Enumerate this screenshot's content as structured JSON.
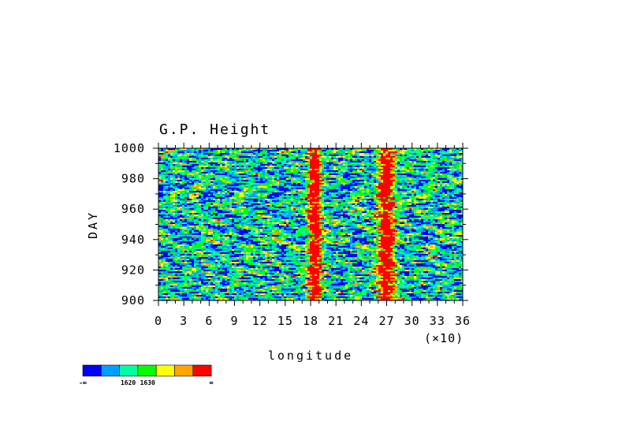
{
  "chart_data": {
    "type": "heatmap",
    "title": "G.P. Height",
    "xlabel": "longitude",
    "ylabel": "DAY",
    "x_multiplier_label": "(×10)",
    "xlim": [
      0,
      36
    ],
    "ylim": [
      900,
      1000
    ],
    "x_ticks": [
      "0",
      "3",
      "6",
      "9",
      "12",
      "15",
      "18",
      "21",
      "24",
      "27",
      "30",
      "33",
      "36"
    ],
    "y_ticks": [
      "900",
      "920",
      "940",
      "960",
      "980",
      "1000"
    ],
    "colorbar": {
      "colors": [
        "#0000ff",
        "#00a0ff",
        "#00ffa0",
        "#00ff00",
        "#ffff00",
        "#ffa500",
        "#ff0000"
      ],
      "labels": [
        "-∞",
        "1620",
        "1630",
        "∞"
      ]
    },
    "features": [
      {
        "description": "high band",
        "center_x": 18.5,
        "width_x": 2.0
      },
      {
        "description": "high band",
        "center_x": 27.0,
        "width_x": 2.5
      }
    ]
  }
}
